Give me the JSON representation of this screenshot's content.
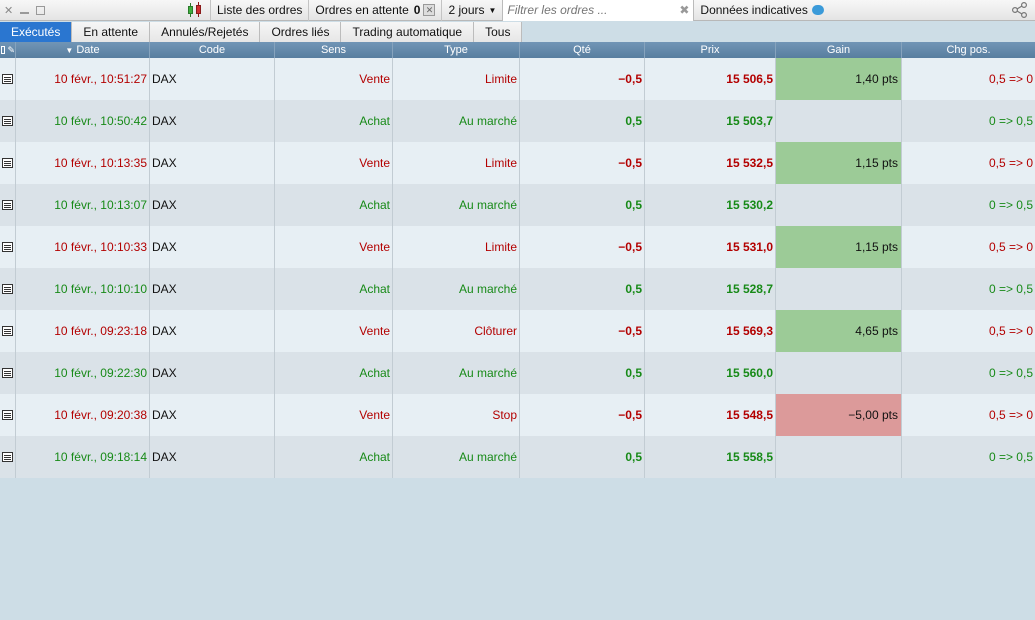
{
  "toolbar": {
    "orders_list": "Liste des ordres",
    "pending_label": "Ordres en attente",
    "pending_count": "0",
    "period": "2 jours",
    "filter_placeholder": "Filtrer les ordres ...",
    "indicative": "Données indicatives"
  },
  "tabs": [
    {
      "label": "Exécutés",
      "active": true
    },
    {
      "label": "En attente",
      "active": false
    },
    {
      "label": "Annulés/Rejetés",
      "active": false
    },
    {
      "label": "Ordres liés",
      "active": false
    },
    {
      "label": "Trading automatique",
      "active": false
    },
    {
      "label": "Tous",
      "active": false
    }
  ],
  "columns": {
    "date": "Date",
    "code": "Code",
    "sens": "Sens",
    "type": "Type",
    "qty": "Qté",
    "price": "Prix",
    "gain": "Gain",
    "pos": "Chg pos."
  },
  "rows": [
    {
      "date": "10 févr., 10:51:27",
      "code": "DAX",
      "sens": "Vente",
      "type": "Limite",
      "qty": "−0,5",
      "price": "15 506,5",
      "gain": "1,40 pts",
      "gain_sign": "pos",
      "pos": "0,5 => 0",
      "side": "sell"
    },
    {
      "date": "10 févr., 10:50:42",
      "code": "DAX",
      "sens": "Achat",
      "type": "Au marché",
      "qty": "0,5",
      "price": "15 503,7",
      "gain": "",
      "gain_sign": "none",
      "pos": "0 => 0,5",
      "side": "buy"
    },
    {
      "date": "10 févr., 10:13:35",
      "code": "DAX",
      "sens": "Vente",
      "type": "Limite",
      "qty": "−0,5",
      "price": "15 532,5",
      "gain": "1,15 pts",
      "gain_sign": "pos",
      "pos": "0,5 => 0",
      "side": "sell"
    },
    {
      "date": "10 févr., 10:13:07",
      "code": "DAX",
      "sens": "Achat",
      "type": "Au marché",
      "qty": "0,5",
      "price": "15 530,2",
      "gain": "",
      "gain_sign": "none",
      "pos": "0 => 0,5",
      "side": "buy"
    },
    {
      "date": "10 févr., 10:10:33",
      "code": "DAX",
      "sens": "Vente",
      "type": "Limite",
      "qty": "−0,5",
      "price": "15 531,0",
      "gain": "1,15 pts",
      "gain_sign": "pos",
      "pos": "0,5 => 0",
      "side": "sell"
    },
    {
      "date": "10 févr., 10:10:10",
      "code": "DAX",
      "sens": "Achat",
      "type": "Au marché",
      "qty": "0,5",
      "price": "15 528,7",
      "gain": "",
      "gain_sign": "none",
      "pos": "0 => 0,5",
      "side": "buy"
    },
    {
      "date": "10 févr., 09:23:18",
      "code": "DAX",
      "sens": "Vente",
      "type": "Clôturer",
      "qty": "−0,5",
      "price": "15 569,3",
      "gain": "4,65 pts",
      "gain_sign": "pos",
      "pos": "0,5 => 0",
      "side": "sell"
    },
    {
      "date": "10 févr., 09:22:30",
      "code": "DAX",
      "sens": "Achat",
      "type": "Au marché",
      "qty": "0,5",
      "price": "15 560,0",
      "gain": "",
      "gain_sign": "none",
      "pos": "0 => 0,5",
      "side": "buy"
    },
    {
      "date": "10 févr., 09:20:38",
      "code": "DAX",
      "sens": "Vente",
      "type": "Stop",
      "qty": "−0,5",
      "price": "15 548,5",
      "gain": "−5,00 pts",
      "gain_sign": "neg",
      "pos": "0,5 => 0",
      "side": "sell"
    },
    {
      "date": "10 févr., 09:18:14",
      "code": "DAX",
      "sens": "Achat",
      "type": "Au marché",
      "qty": "0,5",
      "price": "15 558,5",
      "gain": "",
      "gain_sign": "none",
      "pos": "0 => 0,5",
      "side": "buy"
    }
  ]
}
